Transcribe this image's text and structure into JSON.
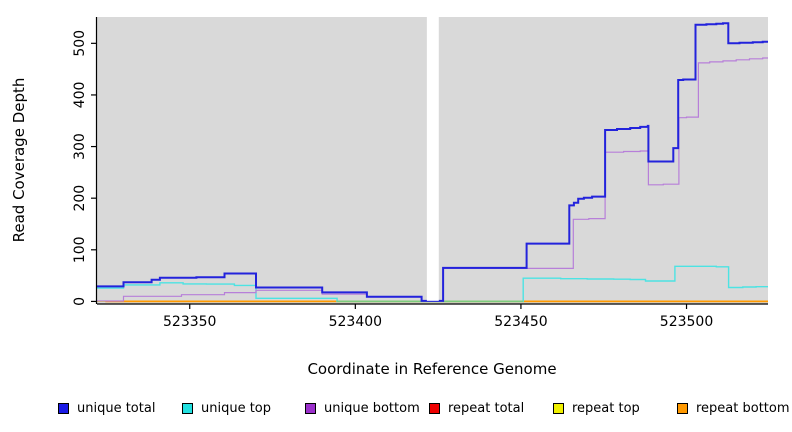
{
  "chart": {
    "y_axis_title": "Read Coverage Depth",
    "x_axis_title": "Coordinate in Reference Genome",
    "panel_bg": "#d9d9d9",
    "page_bg": "#ffffff"
  },
  "legend": {
    "items": [
      {
        "id": "unique-total",
        "label": "unique total",
        "color": "#1a1ae6"
      },
      {
        "id": "unique-top",
        "label": "unique top",
        "color": "#22e0e0"
      },
      {
        "id": "unique-bottom",
        "label": "unique bottom",
        "color": "#9b30cc"
      },
      {
        "id": "repeat-total",
        "label": "repeat total",
        "color": "#ee0000"
      },
      {
        "id": "repeat-top",
        "label": "repeat top",
        "color": "#f0f000"
      },
      {
        "id": "repeat-bottom",
        "label": "repeat bottom",
        "color": "#ff9900"
      }
    ]
  },
  "chart_data": {
    "type": "line",
    "subtype": "step-after",
    "title": "",
    "xlabel": "Coordinate in Reference Genome",
    "ylabel": "Read Coverage Depth",
    "xlim": [
      523322,
      523524.6
    ],
    "ylim": [
      -5,
      551
    ],
    "x_ticks": [
      523350,
      523400,
      523450,
      523500
    ],
    "y_ticks": [
      0,
      100,
      200,
      300,
      400,
      500
    ],
    "grid": false,
    "legend_position": "bottom",
    "gap_region": {
      "x_start": 523421.6,
      "x_end": 523425.2,
      "y_above_value": 1.2
    },
    "series": [
      {
        "name": "repeat total",
        "key": "repeat-total",
        "color": "#e02020",
        "width": 1.2,
        "points": [
          [
            523322,
            0
          ]
        ]
      },
      {
        "name": "repeat top",
        "key": "repeat-top",
        "color": "#f0f000",
        "width": 1.2,
        "points": [
          [
            523322,
            0
          ]
        ]
      },
      {
        "name": "repeat bottom",
        "key": "repeat-bottom",
        "color": "#ff9a00",
        "width": 1.8,
        "points": [
          [
            523324.5,
            0
          ]
        ]
      },
      {
        "name": "unique top",
        "key": "unique-top",
        "color": "#4ce3e3",
        "width": 1.4,
        "points": [
          [
            523322,
            26
          ],
          [
            523330,
            32
          ],
          [
            523341,
            36
          ],
          [
            523348,
            34
          ],
          [
            523355,
            33.5
          ],
          [
            523363.5,
            31
          ],
          [
            523370,
            6
          ],
          [
            523394.5,
            0
          ],
          [
            523450.7,
            45
          ],
          [
            523462,
            44
          ],
          [
            523470,
            43.5
          ],
          [
            523478,
            43
          ],
          [
            523483,
            42.5
          ],
          [
            523487.6,
            39.5
          ],
          [
            523496.5,
            68
          ],
          [
            523505,
            68
          ],
          [
            523509,
            67
          ],
          [
            523512.7,
            27
          ],
          [
            523517,
            28
          ],
          [
            523521,
            28.5
          ]
        ]
      },
      {
        "name": "overlap of top strands at zero (cyan over yellow)",
        "key": "zero-overlap",
        "artifact": true,
        "color": "#7ccc7c",
        "width": 1.5,
        "points": [
          [
            523394.5,
            0
          ]
        ],
        "x_end": 523450.7
      },
      {
        "name": "unique bottom",
        "key": "unique-bottom",
        "color": "#b77fd9",
        "width": 1.2,
        "points": [
          [
            523322,
            0.8
          ],
          [
            523330,
            10
          ],
          [
            523347.5,
            13
          ],
          [
            523360.5,
            17
          ],
          [
            523370,
            21.5
          ],
          [
            523390,
            14
          ],
          [
            523403.5,
            8.5
          ],
          [
            523420,
            0.8
          ],
          [
            523426.5,
            64
          ],
          [
            523465.8,
            159
          ],
          [
            523470.5,
            160.5
          ],
          [
            523475.4,
            289
          ],
          [
            523481,
            290.5
          ],
          [
            523486,
            291.5
          ],
          [
            523488.5,
            226
          ],
          [
            523493,
            227
          ],
          [
            523497.7,
            356
          ],
          [
            523500,
            357
          ],
          [
            523503.6,
            462
          ],
          [
            523507,
            464
          ],
          [
            523511,
            466
          ],
          [
            523515,
            468
          ],
          [
            523519,
            470
          ],
          [
            523523,
            471.5
          ]
        ]
      },
      {
        "name": "unique total",
        "key": "unique-total",
        "color": "#2323dc",
        "width": 2,
        "points": [
          [
            523322,
            29
          ],
          [
            523330,
            37
          ],
          [
            523338.5,
            42
          ],
          [
            523341,
            46
          ],
          [
            523352,
            47
          ],
          [
            523360.5,
            54
          ],
          [
            523370,
            27
          ],
          [
            523390,
            17.5
          ],
          [
            523403.5,
            9
          ],
          [
            523420,
            1
          ],
          [
            523426.5,
            65
          ],
          [
            523451.7,
            112
          ],
          [
            523464.6,
            186
          ],
          [
            523466,
            191
          ],
          [
            523467.3,
            199
          ],
          [
            523469,
            201
          ],
          [
            523471.5,
            203
          ],
          [
            523475.4,
            332
          ],
          [
            523479,
            334
          ],
          [
            523483,
            336
          ],
          [
            523486,
            338
          ],
          [
            523488.3,
            340
          ],
          [
            523488.5,
            271
          ],
          [
            523496,
            297
          ],
          [
            523497.5,
            429
          ],
          [
            523499,
            430
          ],
          [
            523502.7,
            536
          ],
          [
            523506,
            537
          ],
          [
            523509,
            538
          ],
          [
            523511,
            539
          ],
          [
            523512.6,
            500
          ],
          [
            523516,
            501
          ],
          [
            523520,
            502
          ],
          [
            523523,
            503
          ]
        ]
      }
    ]
  }
}
